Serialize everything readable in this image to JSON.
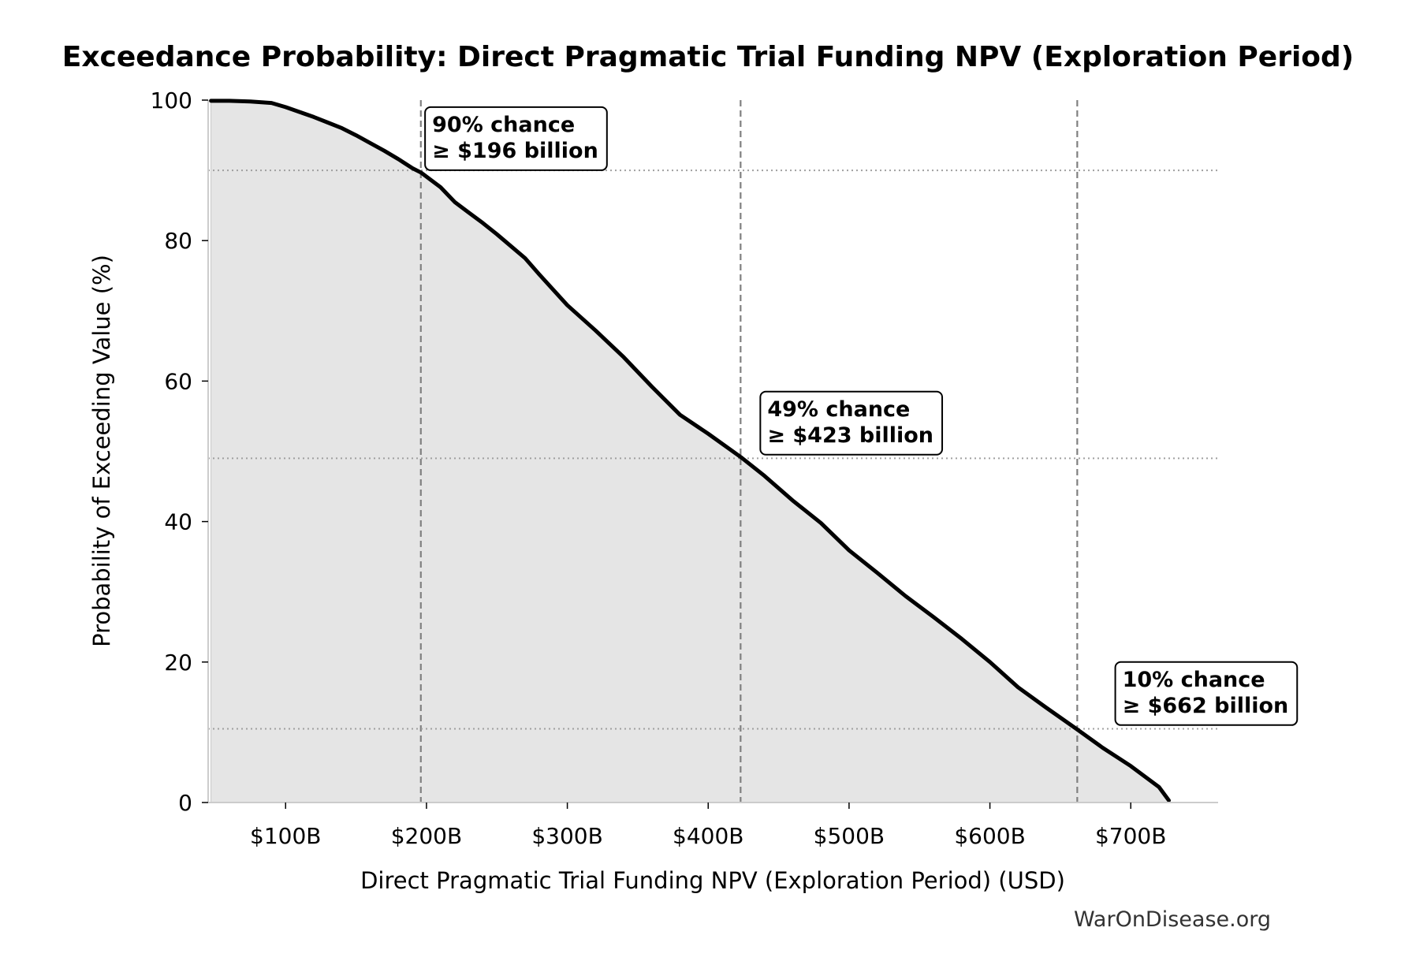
{
  "chart_data": {
    "type": "area",
    "title": "Exceedance Probability: Direct Pragmatic Trial Funding NPV (Exploration Period)",
    "xlabel": "Direct Pragmatic Trial Funding NPV (Exploration Period) (USD)",
    "ylabel": "Probability of Exceeding Value (%)",
    "xlim": [
      45,
      762
    ],
    "ylim": [
      0,
      100
    ],
    "x_unit": "billion USD",
    "x_ticks": [
      100,
      200,
      300,
      400,
      500,
      600,
      700
    ],
    "x_tick_labels": [
      "$100B",
      "$200B",
      "$300B",
      "$400B",
      "$500B",
      "$600B",
      "$700B"
    ],
    "y_ticks": [
      0,
      20,
      40,
      60,
      80,
      100
    ],
    "y_tick_labels": [
      "0",
      "20",
      "40",
      "60",
      "80",
      "100"
    ],
    "grid": false,
    "fill_color": "#e5e5e5",
    "line_color": "#000000",
    "series": [
      {
        "x": [
          47,
          60,
          75,
          90,
          100,
          110,
          120,
          130,
          140,
          150,
          160,
          170,
          180,
          190,
          196,
          210,
          220,
          230,
          240,
          250,
          260,
          270,
          280,
          290,
          300,
          320,
          340,
          360,
          380,
          400,
          423,
          440,
          460,
          480,
          500,
          520,
          540,
          560,
          580,
          600,
          620,
          640,
          662,
          680,
          700,
          720,
          727
        ],
        "y": [
          99.9,
          99.9,
          99.8,
          99.6,
          99.0,
          98.3,
          97.6,
          96.8,
          96.0,
          95.0,
          93.9,
          92.8,
          91.6,
          90.3,
          89.7,
          87.6,
          85.5,
          84.0,
          82.5,
          80.9,
          79.2,
          77.5,
          75.2,
          73.0,
          70.8,
          67.2,
          63.4,
          59.2,
          55.2,
          52.5,
          49.2,
          46.5,
          43.0,
          39.8,
          35.9,
          32.7,
          29.4,
          26.4,
          23.3,
          20.0,
          16.4,
          13.5,
          10.4,
          7.8,
          5.2,
          2.2,
          0.3
        ]
      }
    ],
    "annotations": [
      {
        "x": 196,
        "y": 90,
        "line1": "90% chance",
        "line2": "≥ $196 billion",
        "label_anchor_x": 199,
        "label_anchor_y": 99
      },
      {
        "x": 423,
        "y": 49,
        "line1": "49% chance",
        "line2": "≥ $423 billion",
        "label_anchor_x": 437,
        "label_anchor_y": 58.5
      },
      {
        "x": 662,
        "y": 10.5,
        "line1": "10% chance",
        "line2": "≥ $662 billion",
        "label_anchor_x": 689,
        "label_anchor_y": 20
      }
    ],
    "watermark": "WarOnDisease.org"
  }
}
